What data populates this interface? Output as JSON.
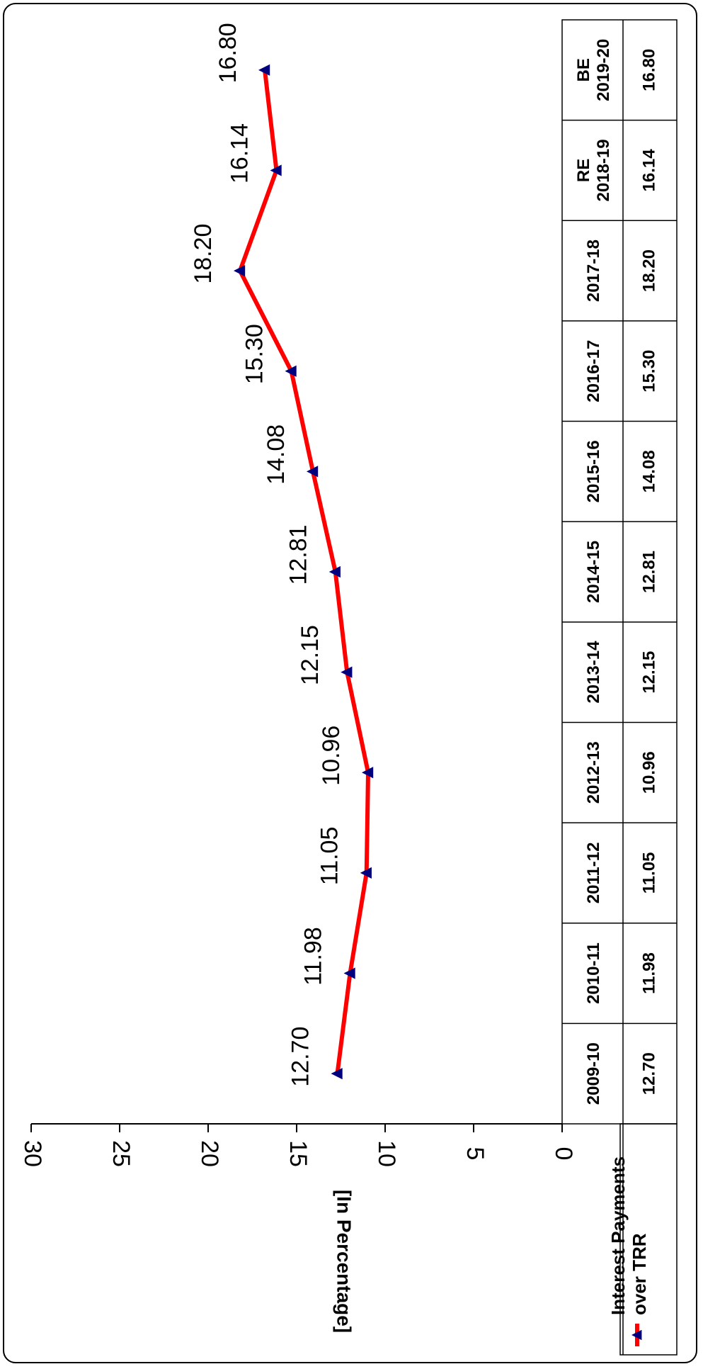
{
  "chart_data": {
    "type": "line",
    "ylabel": "[In Percentage]",
    "ylim": [
      0,
      30
    ],
    "yticks": [
      "0",
      "5",
      "10",
      "15",
      "20",
      "25",
      "30"
    ],
    "categories": [
      [
        "2009-10"
      ],
      [
        "2010-11"
      ],
      [
        "2011-12"
      ],
      [
        "2012-13"
      ],
      [
        "2013-14"
      ],
      [
        "2014-15"
      ],
      [
        "2015-16"
      ],
      [
        "2016-17"
      ],
      [
        "2017-18"
      ],
      [
        "RE",
        "2018-19"
      ],
      [
        "BE",
        "2019-20"
      ]
    ],
    "series": [
      {
        "name": "Interest Payments over TRR",
        "legend_lines": [
          "Interest Payments",
          "over TRR"
        ],
        "values": [
          12.7,
          11.98,
          11.05,
          10.96,
          12.15,
          12.81,
          14.08,
          15.3,
          18.2,
          16.14,
          16.8
        ],
        "labels": [
          "12.70",
          "11.98",
          "11.05",
          "10.96",
          "12.15",
          "12.81",
          "14.08",
          "15.30",
          "18.20",
          "16.14",
          "16.80"
        ],
        "line_color": "#ff0000",
        "marker_color": "#00007f"
      }
    ],
    "grid": false,
    "legend": "bottom-left-table",
    "orientation": "rotated-90-clockwise"
  }
}
